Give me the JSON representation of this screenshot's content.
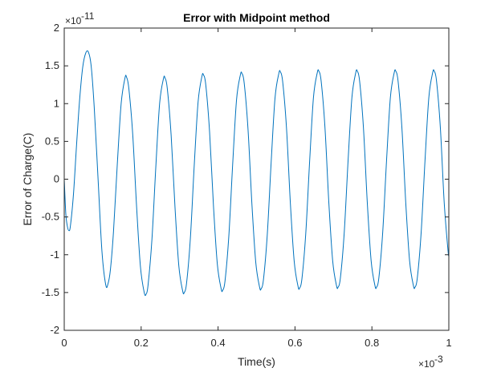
{
  "chart_data": {
    "type": "line",
    "title": "Error with Midpoint method",
    "xlabel": "Time(s)",
    "ylabel": "Error of Charge(C)",
    "xlim": [
      0,
      0.001
    ],
    "ylim": [
      -2e-11,
      2e-11
    ],
    "x_multiplier": "×10",
    "x_exponent": "-3",
    "y_multiplier": "×10",
    "y_exponent": "-11",
    "x_ticks": [
      0,
      0.2,
      0.4,
      0.6,
      0.8,
      1
    ],
    "y_ticks": [
      -2,
      -1.5,
      -1,
      -0.5,
      0,
      0.5,
      1,
      1.5,
      2
    ],
    "x_tick_labels": [
      "0",
      "0.2",
      "0.4",
      "0.6",
      "0.8",
      "1"
    ],
    "y_tick_labels": [
      "-2",
      "-1.5",
      "-1",
      "-0.5",
      "0",
      "0.5",
      "1",
      "1.5",
      "2"
    ],
    "grid": false,
    "box": true,
    "series": [
      {
        "color": "#0072BD",
        "x": [
          0,
          4e-06,
          8e-06,
          1.2e-05,
          1.6e-05,
          2.4e-05,
          3.2e-05,
          4e-05,
          4.8e-05,
          5.6e-05,
          6.3e-05,
          7e-05,
          7.8e-05,
          8.8e-05,
          9.8e-05,
          0.000108,
          0.000114,
          0.00012,
          0.000128,
          0.000138,
          0.000148,
          0.000158,
          0.000162,
          0.000168,
          0.000178,
          0.000188,
          0.000198,
          0.000208,
          0.000213,
          0.000218,
          0.000228,
          0.000238,
          0.000248,
          0.000258,
          0.000262,
          0.000268,
          0.000278,
          0.000288,
          0.000298,
          0.000308,
          0.000312,
          0.000318,
          0.000328,
          0.000338,
          0.000348,
          0.000358,
          0.000362,
          0.000368,
          0.000378,
          0.000388,
          0.000398,
          0.000408,
          0.000412,
          0.000418,
          0.000428,
          0.000438,
          0.000448,
          0.000458,
          0.000462,
          0.000468,
          0.000478,
          0.000488,
          0.000498,
          0.000508,
          0.000512,
          0.000518,
          0.000528,
          0.000538,
          0.000548,
          0.000558,
          0.000562,
          0.000568,
          0.000578,
          0.000588,
          0.000598,
          0.000608,
          0.000612,
          0.000618,
          0.000628,
          0.000638,
          0.000648,
          0.000658,
          0.000662,
          0.000668,
          0.000678,
          0.000688,
          0.000698,
          0.000708,
          0.000712,
          0.000718,
          0.000728,
          0.000738,
          0.000748,
          0.000758,
          0.000762,
          0.000768,
          0.000778,
          0.000788,
          0.000798,
          0.000808,
          0.000812,
          0.000818,
          0.000828,
          0.000838,
          0.000848,
          0.000858,
          0.000862,
          0.000868,
          0.000878,
          0.000888,
          0.000898,
          0.000908,
          0.000912,
          0.000918,
          0.000928,
          0.000938,
          0.000948,
          0.000958,
          0.000962,
          0.000968,
          0.000978,
          0.000988,
          0.000998,
          0.001
        ],
        "y": [
          0,
          -0.45,
          -0.62,
          -0.68,
          -0.62,
          -0.2,
          0.45,
          1.05,
          1.48,
          1.67,
          1.68,
          1.5,
          0.95,
          0.0,
          -0.95,
          -1.4,
          -1.38,
          -1.2,
          -0.7,
          0.2,
          1.0,
          1.34,
          1.35,
          1.2,
          0.6,
          -0.35,
          -1.15,
          -1.5,
          -1.52,
          -1.4,
          -0.8,
          0.15,
          1.0,
          1.33,
          1.34,
          1.2,
          0.58,
          -0.37,
          -1.15,
          -1.48,
          -1.5,
          -1.38,
          -0.78,
          0.18,
          1.02,
          1.36,
          1.38,
          1.25,
          0.62,
          -0.35,
          -1.12,
          -1.45,
          -1.47,
          -1.35,
          -0.75,
          0.2,
          1.05,
          1.38,
          1.4,
          1.27,
          0.65,
          -0.33,
          -1.1,
          -1.43,
          -1.45,
          -1.33,
          -0.73,
          0.22,
          1.07,
          1.4,
          1.42,
          1.29,
          0.67,
          -0.32,
          -1.09,
          -1.42,
          -1.44,
          -1.32,
          -0.72,
          0.23,
          1.08,
          1.41,
          1.43,
          1.3,
          0.68,
          -0.31,
          -1.08,
          -1.41,
          -1.43,
          -1.31,
          -0.71,
          0.24,
          1.08,
          1.41,
          1.43,
          1.3,
          0.68,
          -0.31,
          -1.08,
          -1.41,
          -1.43,
          -1.31,
          -0.71,
          0.24,
          1.08,
          1.41,
          1.43,
          1.3,
          0.68,
          -0.31,
          -1.08,
          -1.41,
          -1.43,
          -1.31,
          -0.71,
          0.24,
          1.08,
          1.41,
          1.43,
          1.3,
          0.68,
          -0.31,
          -0.95,
          -1.0
        ]
      }
    ]
  }
}
